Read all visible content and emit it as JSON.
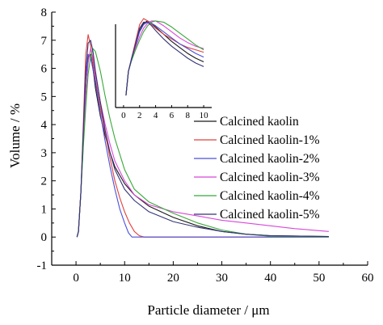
{
  "chart_data": {
    "type": "line",
    "xlabel": "Particle diameter / μm",
    "ylabel": "Volume / %",
    "xlim": [
      -5,
      60
    ],
    "ylim": [
      -1,
      8
    ],
    "xticks": [
      0,
      10,
      20,
      30,
      40,
      50,
      60
    ],
    "yticks": [
      -1,
      0,
      1,
      2,
      3,
      4,
      5,
      6,
      7,
      8
    ],
    "grid": false,
    "legend_position": "right",
    "series": [
      {
        "name": "Calcined kaolin",
        "color": "#1a1a1a",
        "points": [
          [
            0.2,
            0
          ],
          [
            0.5,
            0.2
          ],
          [
            1.0,
            1.6
          ],
          [
            1.5,
            3.6
          ],
          [
            2.0,
            5.6
          ],
          [
            2.5,
            6.4
          ],
          [
            3.0,
            6.5
          ],
          [
            3.5,
            6.0
          ],
          [
            4.0,
            5.3
          ],
          [
            5.0,
            4.3
          ],
          [
            6.0,
            3.6
          ],
          [
            7.0,
            3.0
          ],
          [
            8.0,
            2.5
          ],
          [
            10.0,
            1.9
          ],
          [
            12.0,
            1.5
          ],
          [
            15.0,
            1.1
          ],
          [
            20.0,
            0.7
          ],
          [
            25.0,
            0.4
          ],
          [
            30.0,
            0.2
          ],
          [
            35.0,
            0.1
          ],
          [
            40.0,
            0.05
          ],
          [
            52.0,
            0.02
          ]
        ]
      },
      {
        "name": "Calcined kaolin-1%",
        "color": "#e0403c",
        "points": [
          [
            0.2,
            0
          ],
          [
            0.5,
            0.2
          ],
          [
            1.0,
            1.6
          ],
          [
            1.5,
            4.0
          ],
          [
            2.0,
            6.5
          ],
          [
            2.5,
            7.2
          ],
          [
            3.0,
            6.8
          ],
          [
            4.0,
            5.6
          ],
          [
            5.0,
            4.6
          ],
          [
            6.0,
            3.7
          ],
          [
            7.0,
            2.8
          ],
          [
            8.0,
            2.0
          ],
          [
            9.0,
            1.4
          ],
          [
            10.0,
            0.9
          ],
          [
            11.0,
            0.5
          ],
          [
            12.0,
            0.2
          ],
          [
            13.0,
            0.05
          ],
          [
            14.0,
            0
          ],
          [
            52.0,
            0
          ]
        ]
      },
      {
        "name": "Calcined kaolin-2%",
        "color": "#4a50d8",
        "points": [
          [
            0.2,
            0
          ],
          [
            0.5,
            0.2
          ],
          [
            1.0,
            1.6
          ],
          [
            1.5,
            3.6
          ],
          [
            2.0,
            5.6
          ],
          [
            2.5,
            6.5
          ],
          [
            3.0,
            6.4
          ],
          [
            4.0,
            5.5
          ],
          [
            5.0,
            4.4
          ],
          [
            6.0,
            3.4
          ],
          [
            7.0,
            2.5
          ],
          [
            8.0,
            1.7
          ],
          [
            9.0,
            1.0
          ],
          [
            10.0,
            0.5
          ],
          [
            10.8,
            0.15
          ],
          [
            11.5,
            0
          ],
          [
            52.0,
            0
          ]
        ]
      },
      {
        "name": "Calcined kaolin-3%",
        "color": "#d848d8",
        "points": [
          [
            0.2,
            0
          ],
          [
            0.5,
            0.2
          ],
          [
            1.0,
            1.6
          ],
          [
            1.5,
            3.3
          ],
          [
            2.0,
            5.0
          ],
          [
            2.5,
            6.2
          ],
          [
            3.0,
            6.7
          ],
          [
            3.5,
            6.4
          ],
          [
            4.0,
            5.8
          ],
          [
            5.0,
            4.8
          ],
          [
            6.0,
            4.0
          ],
          [
            7.0,
            3.3
          ],
          [
            8.0,
            2.7
          ],
          [
            10.0,
            2.0
          ],
          [
            12.0,
            1.5
          ],
          [
            15.0,
            1.15
          ],
          [
            20.0,
            0.9
          ],
          [
            25.0,
            0.75
          ],
          [
            30.0,
            0.6
          ],
          [
            35.0,
            0.5
          ],
          [
            40.0,
            0.4
          ],
          [
            45.0,
            0.3
          ],
          [
            52.0,
            0.2
          ]
        ]
      },
      {
        "name": "Calcined kaolin-4%",
        "color": "#38a838",
        "points": [
          [
            0.2,
            0
          ],
          [
            0.5,
            0.2
          ],
          [
            1.0,
            1.6
          ],
          [
            1.5,
            3.2
          ],
          [
            2.0,
            4.6
          ],
          [
            2.5,
            5.8
          ],
          [
            3.0,
            6.4
          ],
          [
            3.5,
            6.7
          ],
          [
            4.0,
            6.6
          ],
          [
            5.0,
            5.9
          ],
          [
            6.0,
            5.0
          ],
          [
            7.0,
            4.2
          ],
          [
            8.0,
            3.5
          ],
          [
            10.0,
            2.4
          ],
          [
            12.0,
            1.7
          ],
          [
            15.0,
            1.25
          ],
          [
            20.0,
            0.85
          ],
          [
            25.0,
            0.5
          ],
          [
            30.0,
            0.25
          ],
          [
            35.0,
            0.1
          ],
          [
            40.0,
            0.03
          ],
          [
            52.0,
            0.01
          ]
        ]
      },
      {
        "name": "Calcined kaolin-5%",
        "color": "#33337a",
        "points": [
          [
            0.2,
            0
          ],
          [
            0.5,
            0.2
          ],
          [
            1.0,
            1.6
          ],
          [
            1.5,
            3.8
          ],
          [
            2.0,
            5.9
          ],
          [
            2.5,
            6.9
          ],
          [
            3.0,
            7.0
          ],
          [
            3.5,
            6.6
          ],
          [
            4.0,
            5.9
          ],
          [
            5.0,
            4.8
          ],
          [
            6.0,
            3.8
          ],
          [
            7.0,
            3.0
          ],
          [
            8.0,
            2.4
          ],
          [
            10.0,
            1.7
          ],
          [
            12.0,
            1.3
          ],
          [
            15.0,
            0.9
          ],
          [
            20.0,
            0.55
          ],
          [
            25.0,
            0.35
          ],
          [
            30.0,
            0.2
          ],
          [
            35.0,
            0.1
          ],
          [
            40.0,
            0.05
          ],
          [
            52.0,
            0.02
          ]
        ]
      }
    ],
    "inset": {
      "xlim": [
        -1,
        11
      ],
      "ylim": [
        0,
        7.6
      ],
      "xticks": [
        0,
        2,
        4,
        6,
        8,
        10
      ],
      "xticklabels": [
        "0",
        "2",
        "4",
        "6",
        "8",
        "10"
      ],
      "series_curves": [
        {
          "name": "Calcined kaolin",
          "color": "#1a1a1a",
          "points": [
            [
              0.3,
              1.0
            ],
            [
              0.6,
              3.0
            ],
            [
              1.0,
              4.0
            ],
            [
              1.5,
              5.2
            ],
            [
              2.0,
              6.4
            ],
            [
              2.5,
              7.0
            ],
            [
              3.0,
              7.2
            ],
            [
              3.5,
              7.0
            ],
            [
              4.0,
              6.7
            ],
            [
              5.0,
              6.1
            ],
            [
              6.0,
              5.5
            ],
            [
              7.0,
              5.0
            ],
            [
              8.0,
              4.5
            ],
            [
              9.0,
              4.1
            ],
            [
              10.0,
              3.8
            ]
          ]
        },
        {
          "name": "Calcined kaolin-1%",
          "color": "#e0403c",
          "points": [
            [
              0.3,
              1.0
            ],
            [
              0.6,
              3.0
            ],
            [
              1.0,
              4.1
            ],
            [
              1.5,
              5.5
            ],
            [
              2.0,
              6.9
            ],
            [
              2.5,
              7.4
            ],
            [
              3.0,
              7.2
            ],
            [
              3.5,
              6.9
            ],
            [
              4.0,
              6.6
            ],
            [
              5.0,
              6.1
            ],
            [
              6.0,
              5.7
            ],
            [
              7.0,
              5.3
            ],
            [
              8.0,
              5.0
            ],
            [
              9.0,
              4.8
            ],
            [
              10.0,
              4.6
            ]
          ]
        },
        {
          "name": "Calcined kaolin-2%",
          "color": "#4a50d8",
          "points": [
            [
              0.3,
              1.0
            ],
            [
              0.6,
              3.0
            ],
            [
              1.0,
              4.1
            ],
            [
              1.5,
              5.2
            ],
            [
              2.0,
              6.3
            ],
            [
              2.5,
              6.9
            ],
            [
              3.0,
              7.1
            ],
            [
              3.5,
              7.0
            ],
            [
              4.0,
              6.8
            ],
            [
              5.0,
              6.3
            ],
            [
              6.0,
              5.8
            ],
            [
              7.0,
              5.3
            ],
            [
              8.0,
              4.9
            ],
            [
              9.0,
              4.5
            ],
            [
              10.0,
              4.2
            ]
          ]
        },
        {
          "name": "Calcined kaolin-3%",
          "color": "#d848d8",
          "points": [
            [
              0.3,
              1.0
            ],
            [
              0.6,
              3.0
            ],
            [
              1.0,
              4.0
            ],
            [
              1.5,
              5.0
            ],
            [
              2.0,
              5.9
            ],
            [
              2.5,
              6.6
            ],
            [
              3.0,
              7.0
            ],
            [
              3.5,
              7.2
            ],
            [
              4.0,
              7.2
            ],
            [
              5.0,
              6.8
            ],
            [
              6.0,
              6.3
            ],
            [
              7.0,
              5.8
            ],
            [
              8.0,
              5.4
            ],
            [
              9.0,
              5.1
            ],
            [
              10.0,
              4.9
            ]
          ]
        },
        {
          "name": "Calcined kaolin-4%",
          "color": "#38a838",
          "points": [
            [
              0.3,
              1.0
            ],
            [
              0.6,
              3.0
            ],
            [
              1.0,
              3.9
            ],
            [
              1.5,
              4.8
            ],
            [
              2.0,
              5.6
            ],
            [
              2.5,
              6.3
            ],
            [
              3.0,
              6.8
            ],
            [
              3.5,
              7.1
            ],
            [
              4.0,
              7.2
            ],
            [
              5.0,
              7.1
            ],
            [
              6.0,
              6.7
            ],
            [
              7.0,
              6.2
            ],
            [
              8.0,
              5.7
            ],
            [
              9.0,
              5.2
            ],
            [
              10.0,
              4.8
            ]
          ]
        },
        {
          "name": "Calcined kaolin-5%",
          "color": "#33337a",
          "points": [
            [
              0.3,
              1.0
            ],
            [
              0.6,
              3.0
            ],
            [
              1.0,
              4.0
            ],
            [
              1.5,
              5.3
            ],
            [
              2.0,
              6.6
            ],
            [
              2.5,
              7.1
            ],
            [
              3.0,
              7.1
            ],
            [
              3.5,
              6.8
            ],
            [
              4.0,
              6.4
            ],
            [
              5.0,
              5.7
            ],
            [
              6.0,
              5.1
            ],
            [
              7.0,
              4.6
            ],
            [
              8.0,
              4.1
            ],
            [
              9.0,
              3.7
            ],
            [
              10.0,
              3.4
            ]
          ]
        }
      ]
    }
  }
}
